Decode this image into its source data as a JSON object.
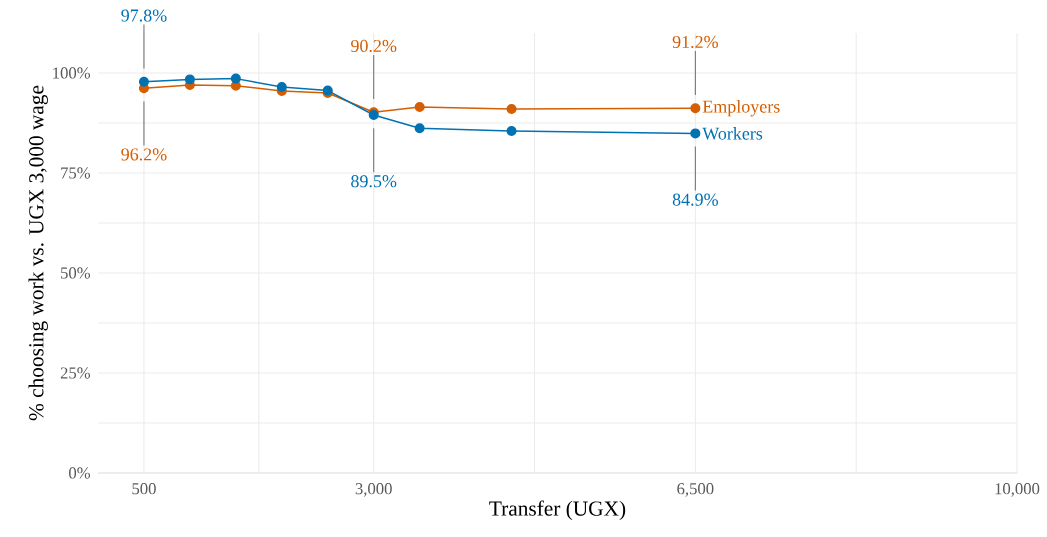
{
  "chart_data": {
    "type": "line",
    "xlabel": "Transfer (UGX)",
    "ylabel": "% choosing work vs. UGX 3,000 wage",
    "x": [
      500,
      1000,
      1500,
      2000,
      2500,
      3000,
      3500,
      4500,
      6500
    ],
    "series": [
      {
        "name": "Workers",
        "color": "#0072b2",
        "values": [
          97.8,
          98.4,
          98.6,
          96.5,
          95.6,
          89.5,
          86.2,
          85.5,
          84.9
        ],
        "value_labels": [
          "97.8%",
          null,
          null,
          null,
          null,
          "89.5%",
          null,
          null,
          "84.9%"
        ]
      },
      {
        "name": "Employers",
        "color": "#d55e00",
        "values": [
          96.2,
          97.0,
          96.8,
          95.5,
          95.0,
          90.2,
          91.5,
          91.0,
          91.2
        ],
        "value_labels": [
          "96.2%",
          null,
          null,
          null,
          null,
          "90.2%",
          null,
          null,
          "91.2%"
        ]
      }
    ],
    "xlim": [
      0,
      10000
    ],
    "xticks": [
      500,
      {
        "value": 1750,
        "label": null
      },
      {
        "value": 3000,
        "label": "3,000"
      },
      {
        "value": 4750,
        "label": null
      },
      {
        "value": 6500,
        "label": "6,500"
      },
      {
        "value": 8250,
        "label": null
      },
      {
        "value": 10000,
        "label": "10,000"
      }
    ],
    "ylim": [
      0,
      110
    ],
    "yticks": [
      {
        "value": 0,
        "label": "0%"
      },
      {
        "value": 12.5,
        "label": null
      },
      {
        "value": 25,
        "label": "25%"
      },
      {
        "value": 37.5,
        "label": null
      },
      {
        "value": 50,
        "label": "50%"
      },
      {
        "value": 62.5,
        "label": null
      },
      {
        "value": 75,
        "label": "75%"
      },
      {
        "value": 87.5,
        "label": null
      },
      {
        "value": 100,
        "label": "100%"
      }
    ],
    "grid": true,
    "legend": false,
    "marker": "circle",
    "line_style": "solid"
  }
}
